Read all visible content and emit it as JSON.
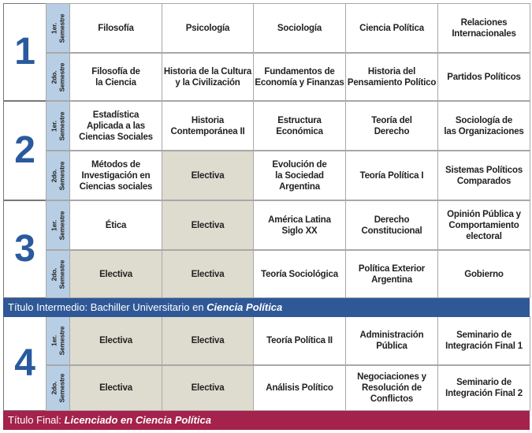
{
  "years": [
    {
      "number": "1",
      "semesters": [
        {
          "label": [
            "1er.",
            "Semestre"
          ],
          "courses": [
            {
              "lines": [
                "Filosofía"
              ]
            },
            {
              "lines": [
                "Psicología"
              ]
            },
            {
              "lines": [
                "Sociología"
              ]
            },
            {
              "lines": [
                "Ciencia Política"
              ]
            },
            {
              "lines": [
                "Relaciones",
                "Internacionales"
              ]
            }
          ]
        },
        {
          "label": [
            "2do.",
            "Semestre"
          ],
          "courses": [
            {
              "lines": [
                "Filosofía de",
                "la Ciencia"
              ]
            },
            {
              "lines": [
                "Historia de la Cultura",
                "y la Civilización"
              ]
            },
            {
              "lines": [
                "Fundamentos de",
                "Economía y Finanzas"
              ]
            },
            {
              "lines": [
                "Historia del",
                "Pensamiento Político"
              ]
            },
            {
              "lines": [
                "Partidos Políticos"
              ]
            }
          ]
        }
      ]
    },
    {
      "number": "2",
      "semesters": [
        {
          "label": [
            "1er.",
            "Semestre"
          ],
          "courses": [
            {
              "lines": [
                "Estadística",
                "Aplicada a las",
                "Ciencias Sociales"
              ]
            },
            {
              "lines": [
                "Historia",
                "Contemporánea II"
              ]
            },
            {
              "lines": [
                "Estructura",
                "Económica"
              ]
            },
            {
              "lines": [
                "Teoría del",
                "Derecho"
              ]
            },
            {
              "lines": [
                "Sociología de",
                "las Organizaciones"
              ]
            }
          ]
        },
        {
          "label": [
            "2do.",
            "Semestre"
          ],
          "courses": [
            {
              "lines": [
                "Métodos de",
                "Investigación en",
                "Ciencias sociales"
              ]
            },
            {
              "lines": [
                "Electiva"
              ],
              "shaded": true
            },
            {
              "lines": [
                "Evolución de",
                "la Sociedad",
                "Argentina"
              ]
            },
            {
              "lines": [
                "Teoría Política I"
              ]
            },
            {
              "lines": [
                "Sistemas Políticos",
                "Comparados"
              ]
            }
          ]
        }
      ]
    },
    {
      "number": "3",
      "semesters": [
        {
          "label": [
            "1er.",
            "Semestre"
          ],
          "courses": [
            {
              "lines": [
                "Ética"
              ]
            },
            {
              "lines": [
                "Electiva"
              ],
              "shaded": true
            },
            {
              "lines": [
                "América Latina",
                "Siglo XX"
              ]
            },
            {
              "lines": [
                "Derecho",
                "Constitucional"
              ]
            },
            {
              "lines": [
                "Opinión Pública y",
                "Comportamiento",
                "electoral"
              ]
            }
          ]
        },
        {
          "label": [
            "2do.",
            "Semestre"
          ],
          "courses": [
            {
              "lines": [
                "Electiva"
              ],
              "shaded": true
            },
            {
              "lines": [
                "Electiva"
              ],
              "shaded": true
            },
            {
              "lines": [
                "Teoría Sociológica"
              ]
            },
            {
              "lines": [
                "Política Exterior",
                "Argentina"
              ]
            },
            {
              "lines": [
                "Gobierno"
              ]
            }
          ]
        }
      ]
    },
    {
      "number": "4",
      "semesters": [
        {
          "label": [
            "1er.",
            "Semestre"
          ],
          "courses": [
            {
              "lines": [
                "Electiva"
              ],
              "shaded": true
            },
            {
              "lines": [
                "Electiva"
              ],
              "shaded": true
            },
            {
              "lines": [
                "Teoría Política II"
              ]
            },
            {
              "lines": [
                "Administración",
                "Pública"
              ]
            },
            {
              "lines": [
                "Seminario de",
                "Integración Final 1"
              ]
            }
          ]
        },
        {
          "label": [
            "2do.",
            "Semestre"
          ],
          "courses": [
            {
              "lines": [
                "Electiva"
              ],
              "shaded": true
            },
            {
              "lines": [
                "Electiva"
              ],
              "shaded": true
            },
            {
              "lines": [
                "Análisis Político"
              ]
            },
            {
              "lines": [
                "Negociaciones y",
                "Resolución de",
                "Conflictos"
              ]
            },
            {
              "lines": [
                "Seminario de",
                "Integración Final 2"
              ]
            }
          ]
        }
      ]
    }
  ],
  "intermediate": {
    "prefix": "Título Intermedio: Bachiller Universitario en ",
    "bold": "Ciencia Política",
    "color": "#2f5897"
  },
  "final": {
    "prefix": "Título Final: ",
    "bold": "Licenciado en Ciencia Política",
    "color": "#a4224b"
  }
}
